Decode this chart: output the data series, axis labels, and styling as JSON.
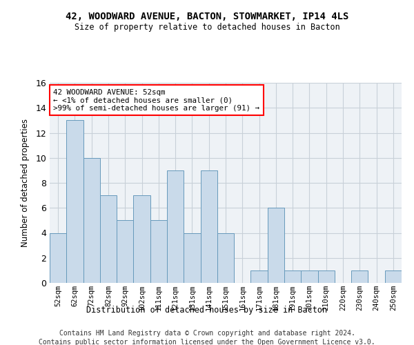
{
  "title1": "42, WOODWARD AVENUE, BACTON, STOWMARKET, IP14 4LS",
  "title2": "Size of property relative to detached houses in Bacton",
  "xlabel": "Distribution of detached houses by size in Bacton",
  "ylabel": "Number of detached properties",
  "categories": [
    "52sqm",
    "62sqm",
    "72sqm",
    "82sqm",
    "92sqm",
    "102sqm",
    "111sqm",
    "121sqm",
    "131sqm",
    "141sqm",
    "151sqm",
    "161sqm",
    "171sqm",
    "181sqm",
    "191sqm",
    "201sqm",
    "210sqm",
    "220sqm",
    "230sqm",
    "240sqm",
    "250sqm"
  ],
  "values": [
    4,
    13,
    10,
    7,
    5,
    7,
    5,
    9,
    4,
    9,
    4,
    0,
    1,
    6,
    1,
    1,
    1,
    0,
    1,
    0,
    1
  ],
  "bar_color": "#c9daea",
  "bar_edge_color": "#6699bb",
  "annotation_line1": "42 WOODWARD AVENUE: 52sqm",
  "annotation_line2": "← <1% of detached houses are smaller (0)",
  "annotation_line3": ">99% of semi-detached houses are larger (91) →",
  "ylim": [
    0,
    16
  ],
  "yticks": [
    0,
    2,
    4,
    6,
    8,
    10,
    12,
    14,
    16
  ],
  "footer1": "Contains HM Land Registry data © Crown copyright and database right 2024.",
  "footer2": "Contains public sector information licensed under the Open Government Licence v3.0.",
  "grid_color": "#c8d0d8",
  "background_color": "#eef2f6"
}
